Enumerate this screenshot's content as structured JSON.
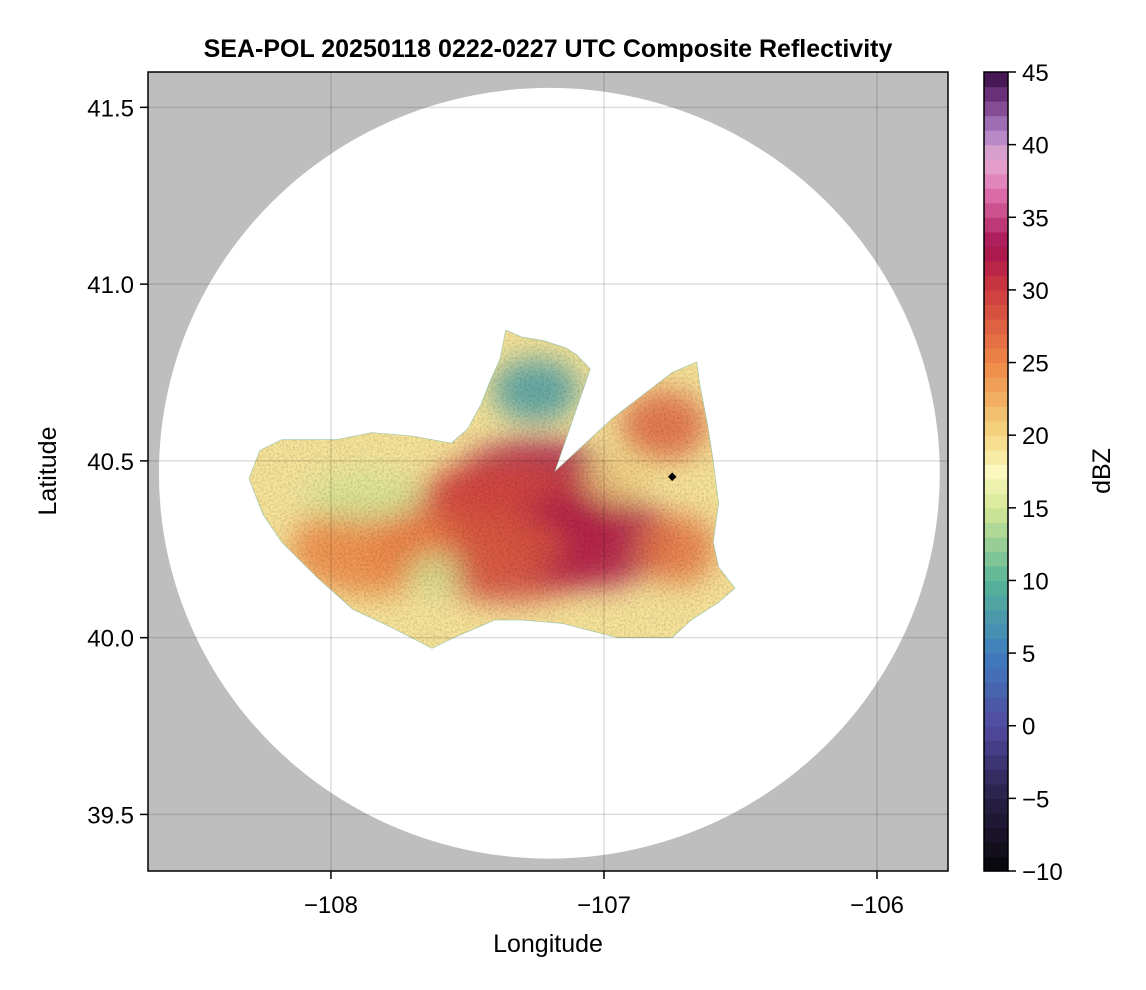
{
  "chart_data": {
    "type": "heatmap",
    "title": "SEA-POL 20250118 0222-0227 UTC Composite Reflectivity",
    "xlabel": "Longitude",
    "ylabel": "Latitude",
    "xlim": [
      -108.67,
      -105.74
    ],
    "ylim": [
      39.34,
      41.6
    ],
    "x_ticks": [
      -108,
      -107,
      -106
    ],
    "x_tick_labels": [
      "−108",
      "−107",
      "−106"
    ],
    "y_ticks": [
      39.5,
      40.0,
      40.5,
      41.0,
      41.5
    ],
    "y_tick_labels": [
      "39.5",
      "40.0",
      "40.5",
      "41.0",
      "41.5"
    ],
    "grid": true,
    "background_color": "#bebebe",
    "radar_domain": {
      "center": [
        -107.2,
        40.465
      ],
      "radius_lon": 1.43,
      "radius_lat": 1.09
    },
    "radar_site": {
      "lon": -106.75,
      "lat": 40.455
    },
    "colorbar": {
      "label": "dBZ",
      "min": -10,
      "max": 45,
      "ticks": [
        -10,
        -5,
        0,
        5,
        10,
        15,
        20,
        25,
        30,
        35,
        40,
        45
      ],
      "tick_labels": [
        "−10",
        "−5",
        "0",
        "5",
        "10",
        "15",
        "20",
        "25",
        "30",
        "35",
        "40",
        "45"
      ],
      "bins": 55,
      "colormap": "spectral-inferno-purple"
    },
    "echo_field": {
      "description": "Composite reflectivity echo coverage polygon (lon, lat) with core values in dBZ",
      "outline": [
        [
          -108.26,
          40.53
        ],
        [
          -108.18,
          40.56
        ],
        [
          -107.98,
          40.56
        ],
        [
          -107.85,
          40.58
        ],
        [
          -107.7,
          40.57
        ],
        [
          -107.56,
          40.55
        ],
        [
          -107.5,
          40.59
        ],
        [
          -107.45,
          40.66
        ],
        [
          -107.42,
          40.72
        ],
        [
          -107.38,
          40.79
        ],
        [
          -107.36,
          40.87
        ],
        [
          -107.3,
          40.85
        ],
        [
          -107.22,
          40.84
        ],
        [
          -107.14,
          40.82
        ],
        [
          -107.1,
          40.8
        ],
        [
          -107.05,
          40.76
        ],
        [
          -107.18,
          40.47
        ],
        [
          -106.97,
          40.62
        ],
        [
          -106.75,
          40.75
        ],
        [
          -106.66,
          40.78
        ],
        [
          -106.65,
          40.72
        ],
        [
          -106.62,
          40.6
        ],
        [
          -106.6,
          40.5
        ],
        [
          -106.58,
          40.38
        ],
        [
          -106.6,
          40.27
        ],
        [
          -106.58,
          40.2
        ],
        [
          -106.52,
          40.14
        ],
        [
          -106.58,
          40.1
        ],
        [
          -106.68,
          40.05
        ],
        [
          -106.75,
          40.0
        ],
        [
          -106.95,
          40.0
        ],
        [
          -107.15,
          40.04
        ],
        [
          -107.3,
          40.05
        ],
        [
          -107.4,
          40.05
        ],
        [
          -107.55,
          40.0
        ],
        [
          -107.63,
          39.97
        ],
        [
          -107.78,
          40.03
        ],
        [
          -107.92,
          40.08
        ],
        [
          -108.05,
          40.17
        ],
        [
          -108.18,
          40.27
        ],
        [
          -108.25,
          40.35
        ],
        [
          -108.3,
          40.45
        ]
      ],
      "cells": [
        {
          "lon": -107.25,
          "lat": 40.42,
          "rlon": 0.32,
          "rlat": 0.14,
          "value": 33
        },
        {
          "lon": -107.35,
          "lat": 40.3,
          "rlon": 0.42,
          "rlat": 0.2,
          "value": 29
        },
        {
          "lon": -107.05,
          "lat": 40.28,
          "rlon": 0.3,
          "rlat": 0.14,
          "value": 32
        },
        {
          "lon": -107.5,
          "lat": 40.26,
          "rlon": 0.35,
          "rlat": 0.1,
          "value": 28
        },
        {
          "lon": -107.85,
          "lat": 40.25,
          "rlon": 0.3,
          "rlat": 0.13,
          "value": 25
        },
        {
          "lon": -106.78,
          "lat": 40.6,
          "rlon": 0.16,
          "rlat": 0.1,
          "value": 27
        },
        {
          "lon": -106.73,
          "lat": 40.25,
          "rlon": 0.14,
          "rlat": 0.1,
          "value": 26
        },
        {
          "lon": -107.45,
          "lat": 40.42,
          "rlon": 0.18,
          "rlat": 0.07,
          "value": 29
        },
        {
          "lon": -107.88,
          "lat": 40.4,
          "rlon": 0.22,
          "rlat": 0.07,
          "value": 15
        },
        {
          "lon": -107.25,
          "lat": 40.7,
          "rlon": 0.16,
          "rlat": 0.09,
          "value": 8
        },
        {
          "lon": -107.62,
          "lat": 40.18,
          "rlon": 0.1,
          "rlat": 0.06,
          "value": 15
        },
        {
          "lon": -106.95,
          "lat": 40.45,
          "rlon": 0.12,
          "rlat": 0.07,
          "value": 20
        }
      ]
    }
  }
}
